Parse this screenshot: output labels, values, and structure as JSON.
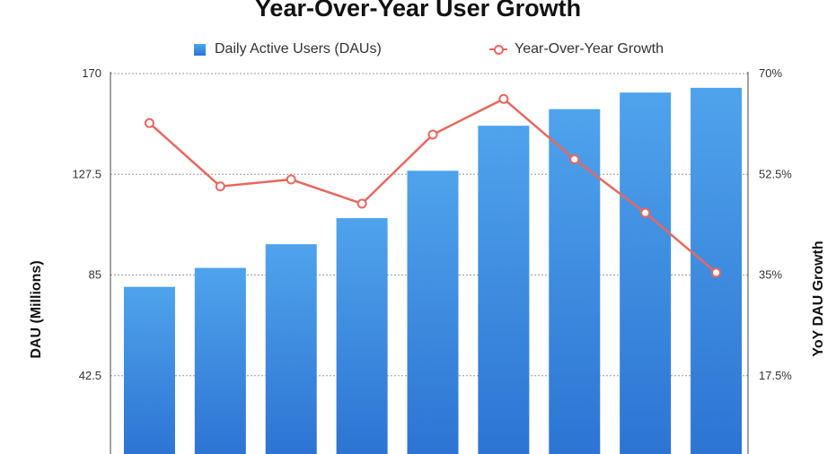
{
  "chart_data": {
    "type": "bar",
    "title": "Year-Over-Year User Growth",
    "xlabel": "",
    "ylabel": "DAU (Millions)",
    "y2label": "YoY DAU Growth",
    "ylim": [
      0,
      170
    ],
    "y2lim": [
      0,
      70
    ],
    "yticks": [
      42.5,
      85,
      127.5,
      170
    ],
    "ytick_labels": [
      "42.5",
      "85",
      "127.5",
      "170"
    ],
    "y2ticks": [
      17.5,
      35,
      52.5,
      70
    ],
    "y2tick_labels": [
      "17.5%",
      "35%",
      "52.5%",
      "70%"
    ],
    "grid": true,
    "legend_position": "top",
    "colors": {
      "bar_top": "#4fa3ec",
      "bar_bottom": "#2d74d3",
      "line": "#e8675f"
    },
    "series": [
      {
        "name": "Daily Active Users (DAUs)",
        "type": "bar",
        "axis": "left",
        "values": [
          80,
          88,
          98,
          109,
          129,
          148,
          155,
          162,
          164
        ]
      },
      {
        "name": "Year-Over-Year Growth",
        "type": "line",
        "axis": "right",
        "values": [
          61.4,
          50.4,
          51.6,
          47.4,
          59.4,
          65.6,
          55.1,
          45.8,
          35.4
        ]
      }
    ]
  }
}
